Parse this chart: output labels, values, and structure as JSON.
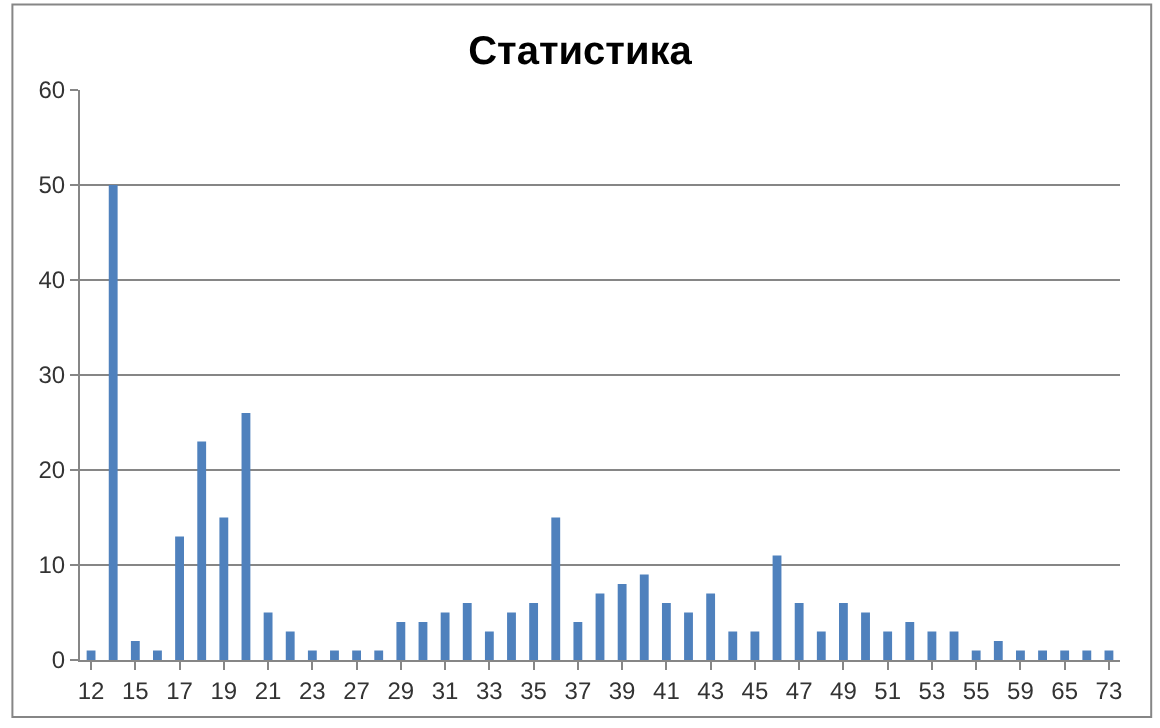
{
  "chart_data": {
    "type": "bar",
    "title": "Статистика",
    "categories": [
      "12",
      null,
      "15",
      null,
      "17",
      null,
      "19",
      null,
      "21",
      null,
      "23",
      null,
      "27",
      null,
      "29",
      null,
      "31",
      null,
      "33",
      null,
      "35",
      null,
      "37",
      null,
      "39",
      null,
      "41",
      null,
      "43",
      null,
      "45",
      null,
      "47",
      null,
      "49",
      null,
      "51",
      null,
      "53",
      null,
      "55",
      null,
      "59",
      null,
      "65",
      null,
      "73"
    ],
    "values": [
      1,
      50,
      2,
      1,
      13,
      23,
      15,
      26,
      5,
      3,
      1,
      1,
      1,
      1,
      4,
      4,
      5,
      6,
      3,
      5,
      6,
      15,
      4,
      7,
      8,
      9,
      6,
      5,
      7,
      3,
      3,
      11,
      6,
      3,
      6,
      5,
      3,
      4,
      3,
      3,
      1,
      2,
      1,
      1,
      1,
      1,
      1
    ],
    "color": "#4f81bd",
    "ylim": [
      0,
      60
    ],
    "yticks": [
      0,
      10,
      20,
      30,
      40,
      50,
      60
    ],
    "grid": "y"
  }
}
